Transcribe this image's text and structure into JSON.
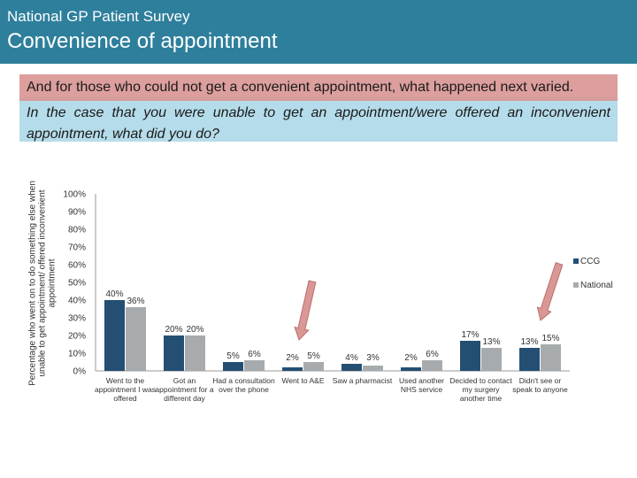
{
  "header": {
    "kicker": "National GP Patient Survey",
    "title": "Convenience of appointment"
  },
  "banner": {
    "text": "And for those who could not get a convenient appointment, what happened next varied."
  },
  "question": {
    "text": "In the case that you were unable to get an appointment/were offered an inconvenient appointment, what did you do?"
  },
  "colors": {
    "ccg": "#244f73",
    "national": "#a7abae",
    "arrow": "#d99795"
  },
  "chart_data": {
    "type": "bar",
    "ylabel": "Percentage who went on to do something else when unable to get appointment/ offered inconvenient appointment",
    "ylim": [
      0,
      100
    ],
    "yticks": [
      "0%",
      "10%",
      "20%",
      "30%",
      "40%",
      "50%",
      "60%",
      "70%",
      "80%",
      "90%",
      "100%"
    ],
    "categories": [
      [
        "Went to the",
        "appointment I was",
        "offered"
      ],
      [
        "Got an",
        "appointment for a",
        "different day"
      ],
      [
        "Had a consultation",
        "over the phone"
      ],
      [
        "Went to A&E"
      ],
      [
        "Saw a pharmacist"
      ],
      [
        "Used another",
        "NHS service"
      ],
      [
        "Decided to contact",
        "my surgery",
        "another time"
      ],
      [
        "Didn't see or",
        "speak to anyone"
      ]
    ],
    "series": [
      {
        "name": "CCG",
        "values": [
          40,
          20,
          5,
          2,
          4,
          2,
          17,
          13
        ],
        "labels": [
          "40%",
          "20%",
          "5%",
          "2%",
          "4%",
          "2%",
          "17%",
          "13%"
        ]
      },
      {
        "name": "National",
        "values": [
          36,
          20,
          6,
          5,
          3,
          6,
          13,
          15
        ],
        "labels": [
          "36%",
          "20%",
          "6%",
          "5%",
          "3%",
          "6%",
          "13%",
          "15%"
        ]
      }
    ],
    "legend": [
      "CCG",
      "National"
    ],
    "annotations": [
      "arrow-went-to-ae",
      "arrow-didnt-see-anyone"
    ]
  }
}
